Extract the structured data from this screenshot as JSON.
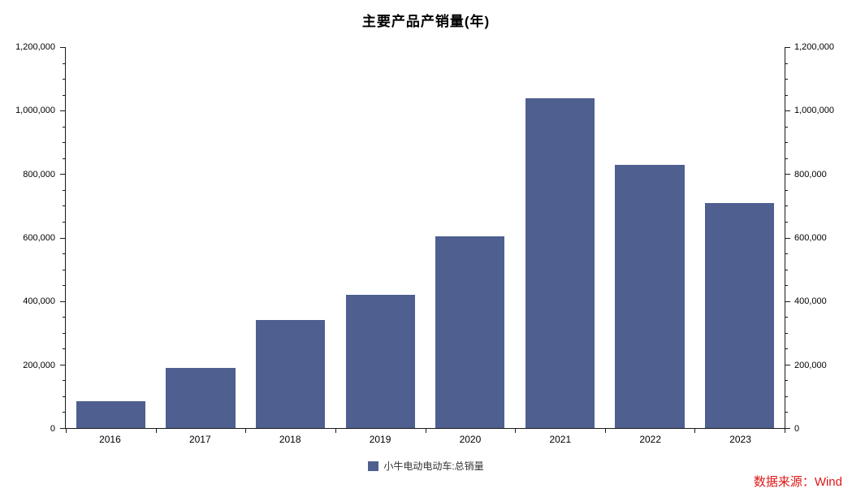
{
  "title": "主要产品产销量(年)",
  "legend": {
    "label": "小牛电动电动车:总销量"
  },
  "source_text": "数据来源：Wind",
  "colors": {
    "bar": "#4E5F90",
    "source_text": "#E01616",
    "axis": "#1A1A1A",
    "background": "#FFFFFF"
  },
  "chart_data": {
    "type": "bar",
    "title": "主要产品产销量(年)",
    "categories": [
      "2016",
      "2017",
      "2018",
      "2019",
      "2020",
      "2021",
      "2022",
      "2023"
    ],
    "series": [
      {
        "name": "小牛电动电动车:总销量",
        "values": [
          85000,
          190000,
          340000,
          420000,
          603000,
          1038000,
          830000,
          710000
        ]
      }
    ],
    "xlabel": "",
    "ylabel": "",
    "ylim": [
      0,
      1200000
    ],
    "ytick_interval": 200000,
    "ytick_minor_interval": 50000,
    "yticks": [
      "0",
      "200,000",
      "400,000",
      "600,000",
      "800,000",
      "1,000,000",
      "1,200,000"
    ],
    "y_axis_sides": [
      "left",
      "right"
    ],
    "grid": false,
    "legend_position": "bottom-center",
    "annotations": [
      "数据来源：Wind"
    ]
  }
}
